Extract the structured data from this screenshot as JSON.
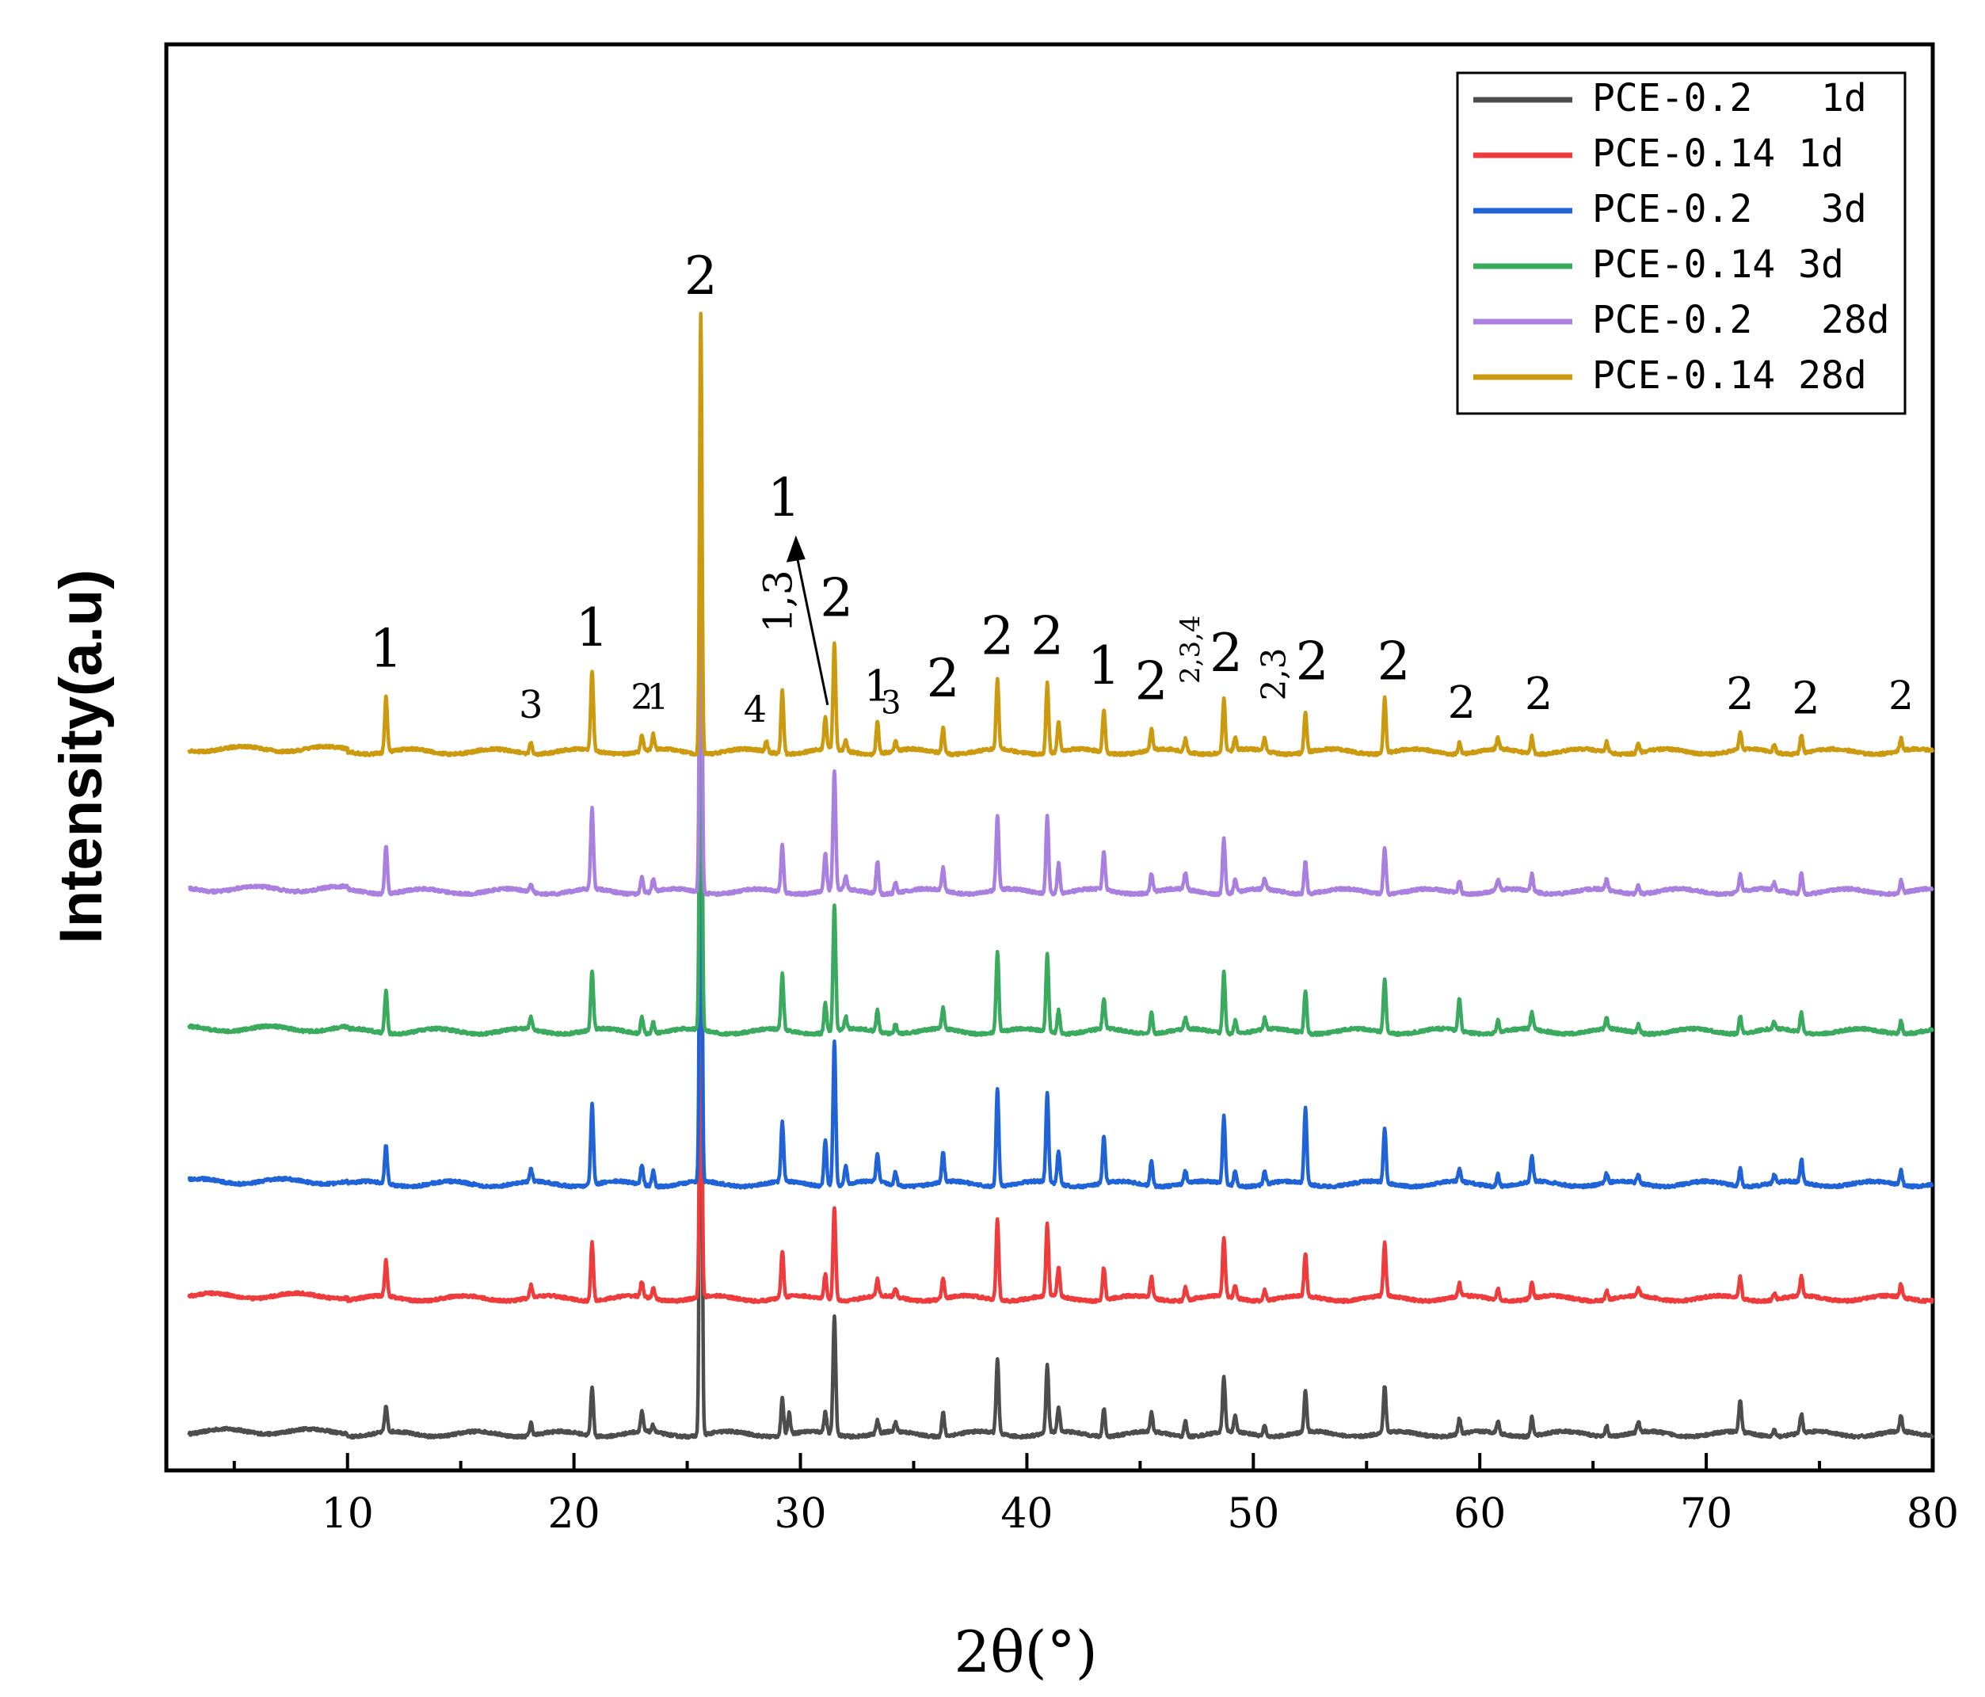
{
  "chart_data": {
    "type": "line",
    "title": "",
    "xlabel": "2θ(°)",
    "ylabel": "Intensity(a.u)",
    "xlim": [
      2,
      80
    ],
    "xticks": [
      10,
      20,
      30,
      40,
      50,
      60,
      70,
      80
    ],
    "legend_position": "top-right",
    "major_peaks_2theta": [
      11.7,
      18.1,
      20.8,
      23.0,
      23.5,
      25.6,
      29.2,
      31.1,
      31.5,
      33.4,
      34.2,
      36.3,
      38.7,
      40.9,
      41.4,
      43.4,
      45.5,
      47.0,
      48.7,
      50.5,
      52.3,
      55.8,
      59.1,
      60.8,
      62.3,
      71.5,
      74.2,
      78.6
    ],
    "series": [
      {
        "name": "PCE-0.2   1d",
        "color": "#4d4d4d",
        "baseline": 0.0,
        "peaks": [
          [
            11.7,
            0.3
          ],
          [
            18.1,
            0.15
          ],
          [
            20.8,
            0.58
          ],
          [
            23.0,
            0.23
          ],
          [
            23.5,
            0.08
          ],
          [
            25.6,
            7.2
          ],
          [
            29.2,
            0.43
          ],
          [
            29.5,
            0.25
          ],
          [
            31.1,
            0.25
          ],
          [
            31.5,
            1.4
          ],
          [
            33.4,
            0.15
          ],
          [
            34.2,
            0.1
          ],
          [
            36.3,
            0.28
          ],
          [
            38.7,
            0.88
          ],
          [
            40.9,
            0.8
          ],
          [
            41.4,
            0.28
          ],
          [
            43.4,
            0.33
          ],
          [
            45.5,
            0.22
          ],
          [
            47.0,
            0.18
          ],
          [
            48.7,
            0.65
          ],
          [
            49.2,
            0.18
          ],
          [
            50.5,
            0.12
          ],
          [
            52.3,
            0.48
          ],
          [
            55.8,
            0.55
          ],
          [
            59.1,
            0.18
          ],
          [
            60.8,
            0.14
          ],
          [
            62.3,
            0.22
          ],
          [
            65.6,
            0.12
          ],
          [
            67.0,
            0.12
          ],
          [
            71.5,
            0.38
          ],
          [
            73.0,
            0.08
          ],
          [
            74.2,
            0.22
          ],
          [
            78.6,
            0.18
          ]
        ]
      },
      {
        "name": "PCE-0.14 1d",
        "color": "#ee3b3b",
        "baseline": 1.6,
        "peaks": [
          [
            11.7,
            0.42
          ],
          [
            18.1,
            0.14
          ],
          [
            20.8,
            0.68
          ],
          [
            23.0,
            0.18
          ],
          [
            23.5,
            0.12
          ],
          [
            25.6,
            4.2
          ],
          [
            29.2,
            0.55
          ],
          [
            31.1,
            0.3
          ],
          [
            31.5,
            1.1
          ],
          [
            33.4,
            0.2
          ],
          [
            34.2,
            0.1
          ],
          [
            36.3,
            0.25
          ],
          [
            38.7,
            0.95
          ],
          [
            40.9,
            0.85
          ],
          [
            41.4,
            0.35
          ],
          [
            43.4,
            0.38
          ],
          [
            45.5,
            0.25
          ],
          [
            47.0,
            0.15
          ],
          [
            48.7,
            0.7
          ],
          [
            49.2,
            0.15
          ],
          [
            50.5,
            0.12
          ],
          [
            52.3,
            0.5
          ],
          [
            55.8,
            0.62
          ],
          [
            59.1,
            0.15
          ],
          [
            60.8,
            0.13
          ],
          [
            62.3,
            0.18
          ],
          [
            65.6,
            0.1
          ],
          [
            67.0,
            0.1
          ],
          [
            71.5,
            0.25
          ],
          [
            73.0,
            0.08
          ],
          [
            74.2,
            0.23
          ],
          [
            78.6,
            0.15
          ]
        ]
      },
      {
        "name": "PCE-0.2   3d",
        "color": "#1f63d6",
        "baseline": 2.95,
        "peaks": [
          [
            11.7,
            0.45
          ],
          [
            18.1,
            0.15
          ],
          [
            20.8,
            0.95
          ],
          [
            23.0,
            0.23
          ],
          [
            23.5,
            0.18
          ],
          [
            25.6,
            6.0
          ],
          [
            29.2,
            0.7
          ],
          [
            31.1,
            0.55
          ],
          [
            31.5,
            1.7
          ],
          [
            32.0,
            0.22
          ],
          [
            33.4,
            0.33
          ],
          [
            34.2,
            0.15
          ],
          [
            36.3,
            0.35
          ],
          [
            38.7,
            1.15
          ],
          [
            40.9,
            1.05
          ],
          [
            41.4,
            0.4
          ],
          [
            43.4,
            0.55
          ],
          [
            45.5,
            0.3
          ],
          [
            47.0,
            0.15
          ],
          [
            48.7,
            0.8
          ],
          [
            49.2,
            0.18
          ],
          [
            50.5,
            0.15
          ],
          [
            52.3,
            0.88
          ],
          [
            55.8,
            0.65
          ],
          [
            59.1,
            0.15
          ],
          [
            60.8,
            0.15
          ],
          [
            62.3,
            0.3
          ],
          [
            65.6,
            0.12
          ],
          [
            67.0,
            0.1
          ],
          [
            71.5,
            0.2
          ],
          [
            73.0,
            0.1
          ],
          [
            74.2,
            0.27
          ],
          [
            78.6,
            0.17
          ]
        ]
      },
      {
        "name": "PCE-0.14 3d",
        "color": "#3aaa5f",
        "baseline": 4.75,
        "peaks": [
          [
            11.7,
            0.5
          ],
          [
            18.1,
            0.15
          ],
          [
            20.8,
            0.7
          ],
          [
            23.0,
            0.2
          ],
          [
            23.5,
            0.13
          ],
          [
            25.6,
            6.1
          ],
          [
            29.2,
            0.65
          ],
          [
            31.1,
            0.35
          ],
          [
            31.5,
            1.5
          ],
          [
            32.0,
            0.15
          ],
          [
            33.4,
            0.25
          ],
          [
            34.2,
            0.12
          ],
          [
            36.3,
            0.25
          ],
          [
            38.7,
            0.95
          ],
          [
            40.9,
            0.92
          ],
          [
            41.4,
            0.28
          ],
          [
            43.4,
            0.35
          ],
          [
            45.5,
            0.25
          ],
          [
            47.0,
            0.13
          ],
          [
            48.7,
            0.72
          ],
          [
            49.2,
            0.15
          ],
          [
            50.5,
            0.13
          ],
          [
            52.3,
            0.5
          ],
          [
            55.8,
            0.62
          ],
          [
            59.1,
            0.38
          ],
          [
            60.8,
            0.15
          ],
          [
            62.3,
            0.2
          ],
          [
            65.6,
            0.12
          ],
          [
            67.0,
            0.1
          ],
          [
            71.5,
            0.2
          ],
          [
            73.0,
            0.08
          ],
          [
            74.2,
            0.23
          ],
          [
            78.6,
            0.15
          ]
        ]
      },
      {
        "name": "PCE-0.2   28d",
        "color": "#a97fe0",
        "baseline": 6.4,
        "peaks": [
          [
            11.7,
            0.57
          ],
          [
            18.1,
            0.1
          ],
          [
            20.8,
            0.95
          ],
          [
            23.0,
            0.2
          ],
          [
            23.5,
            0.15
          ],
          [
            25.6,
            5.6
          ],
          [
            29.2,
            0.55
          ],
          [
            31.1,
            0.45
          ],
          [
            31.5,
            1.4
          ],
          [
            32.0,
            0.15
          ],
          [
            33.4,
            0.38
          ],
          [
            34.2,
            0.12
          ],
          [
            36.3,
            0.27
          ],
          [
            38.7,
            0.88
          ],
          [
            40.9,
            0.92
          ],
          [
            41.4,
            0.35
          ],
          [
            43.4,
            0.45
          ],
          [
            45.5,
            0.22
          ],
          [
            47.0,
            0.2
          ],
          [
            48.7,
            0.65
          ],
          [
            49.2,
            0.15
          ],
          [
            50.5,
            0.12
          ],
          [
            52.3,
            0.38
          ],
          [
            55.8,
            0.55
          ],
          [
            59.1,
            0.15
          ],
          [
            60.8,
            0.13
          ],
          [
            62.3,
            0.2
          ],
          [
            65.6,
            0.12
          ],
          [
            67.0,
            0.1
          ],
          [
            71.5,
            0.2
          ],
          [
            73.0,
            0.08
          ],
          [
            74.2,
            0.25
          ],
          [
            78.6,
            0.15
          ]
        ]
      },
      {
        "name": "PCE-0.14 28d",
        "color": "#cc9a0f",
        "baseline": 8.05,
        "peaks": [
          [
            11.7,
            0.65
          ],
          [
            18.1,
            0.13
          ],
          [
            20.8,
            0.93
          ],
          [
            23.0,
            0.2
          ],
          [
            23.5,
            0.18
          ],
          [
            25.6,
            5.2
          ],
          [
            28.5,
            0.12
          ],
          [
            29.2,
            0.75
          ],
          [
            31.1,
            0.38
          ],
          [
            31.5,
            1.25
          ],
          [
            32.0,
            0.13
          ],
          [
            33.4,
            0.38
          ],
          [
            34.2,
            0.12
          ],
          [
            36.3,
            0.3
          ],
          [
            38.7,
            0.83
          ],
          [
            40.9,
            0.83
          ],
          [
            41.4,
            0.35
          ],
          [
            43.4,
            0.5
          ],
          [
            45.5,
            0.25
          ],
          [
            47.0,
            0.15
          ],
          [
            48.7,
            0.62
          ],
          [
            49.2,
            0.15
          ],
          [
            50.5,
            0.15
          ],
          [
            52.3,
            0.48
          ],
          [
            55.8,
            0.65
          ],
          [
            59.1,
            0.13
          ],
          [
            60.8,
            0.13
          ],
          [
            62.3,
            0.2
          ],
          [
            65.6,
            0.13
          ],
          [
            67.0,
            0.1
          ],
          [
            71.5,
            0.2
          ],
          [
            73.0,
            0.08
          ],
          [
            74.2,
            0.22
          ],
          [
            78.6,
            0.15
          ]
        ]
      }
    ],
    "annotations": [
      {
        "text": "1",
        "x": 11.7,
        "yoff": 1.0,
        "size": 66
      },
      {
        "text": "3",
        "x": 18.1,
        "yoff": 0.4,
        "size": 48
      },
      {
        "text": "1",
        "x": 20.8,
        "yoff": 1.25,
        "size": 66
      },
      {
        "text": "2",
        "x": 23.0,
        "yoff": 0.5,
        "size": 44
      },
      {
        "text": "1",
        "x": 23.7,
        "yoff": 0.5,
        "size": 44
      },
      {
        "text": "2",
        "x": 25.6,
        "yoff": 5.4,
        "size": 66
      },
      {
        "text": "4",
        "x": 28.0,
        "yoff": 0.35,
        "size": 46
      },
      {
        "text": "1,3",
        "x": 29.0,
        "yoff": 1.4,
        "size": 50,
        "rotate": -90
      },
      {
        "text": "2",
        "x": 31.6,
        "yoff": 1.6,
        "size": 66
      },
      {
        "text": "1",
        "x": 33.4,
        "yoff": 0.6,
        "size": 54
      },
      {
        "text": "3",
        "x": 34.0,
        "yoff": 0.45,
        "size": 40
      },
      {
        "text": "2",
        "x": 36.3,
        "yoff": 0.65,
        "size": 66
      },
      {
        "text": "2",
        "x": 38.7,
        "yoff": 1.15,
        "size": 66
      },
      {
        "text": "2",
        "x": 40.9,
        "yoff": 1.15,
        "size": 66
      },
      {
        "text": "1",
        "x": 43.4,
        "yoff": 0.8,
        "size": 66
      },
      {
        "text": "2",
        "x": 45.5,
        "yoff": 0.62,
        "size": 66
      },
      {
        "text": "2,3,4",
        "x": 47.2,
        "yoff": 0.8,
        "size": 34,
        "rotate": -90
      },
      {
        "text": "2",
        "x": 48.8,
        "yoff": 0.95,
        "size": 66
      },
      {
        "text": "2,3",
        "x": 50.9,
        "yoff": 0.6,
        "size": 42,
        "rotate": -90
      },
      {
        "text": "2",
        "x": 52.6,
        "yoff": 0.85,
        "size": 66
      },
      {
        "text": "2",
        "x": 56.2,
        "yoff": 0.85,
        "size": 66
      },
      {
        "text": "2",
        "x": 59.2,
        "yoff": 0.4,
        "size": 56
      },
      {
        "text": "2",
        "x": 62.6,
        "yoff": 0.5,
        "size": 56
      },
      {
        "text": "2",
        "x": 71.5,
        "yoff": 0.5,
        "size": 56
      },
      {
        "text": "2",
        "x": 74.4,
        "yoff": 0.45,
        "size": 56
      },
      {
        "text": "2",
        "x": 78.6,
        "yoff": 0.5,
        "size": 50
      }
    ],
    "arrow_annotation": {
      "text": "1",
      "from_x": 31.2,
      "to_x": 29.8,
      "from_yoff": 0.55,
      "to_yoff": 2.55
    }
  }
}
